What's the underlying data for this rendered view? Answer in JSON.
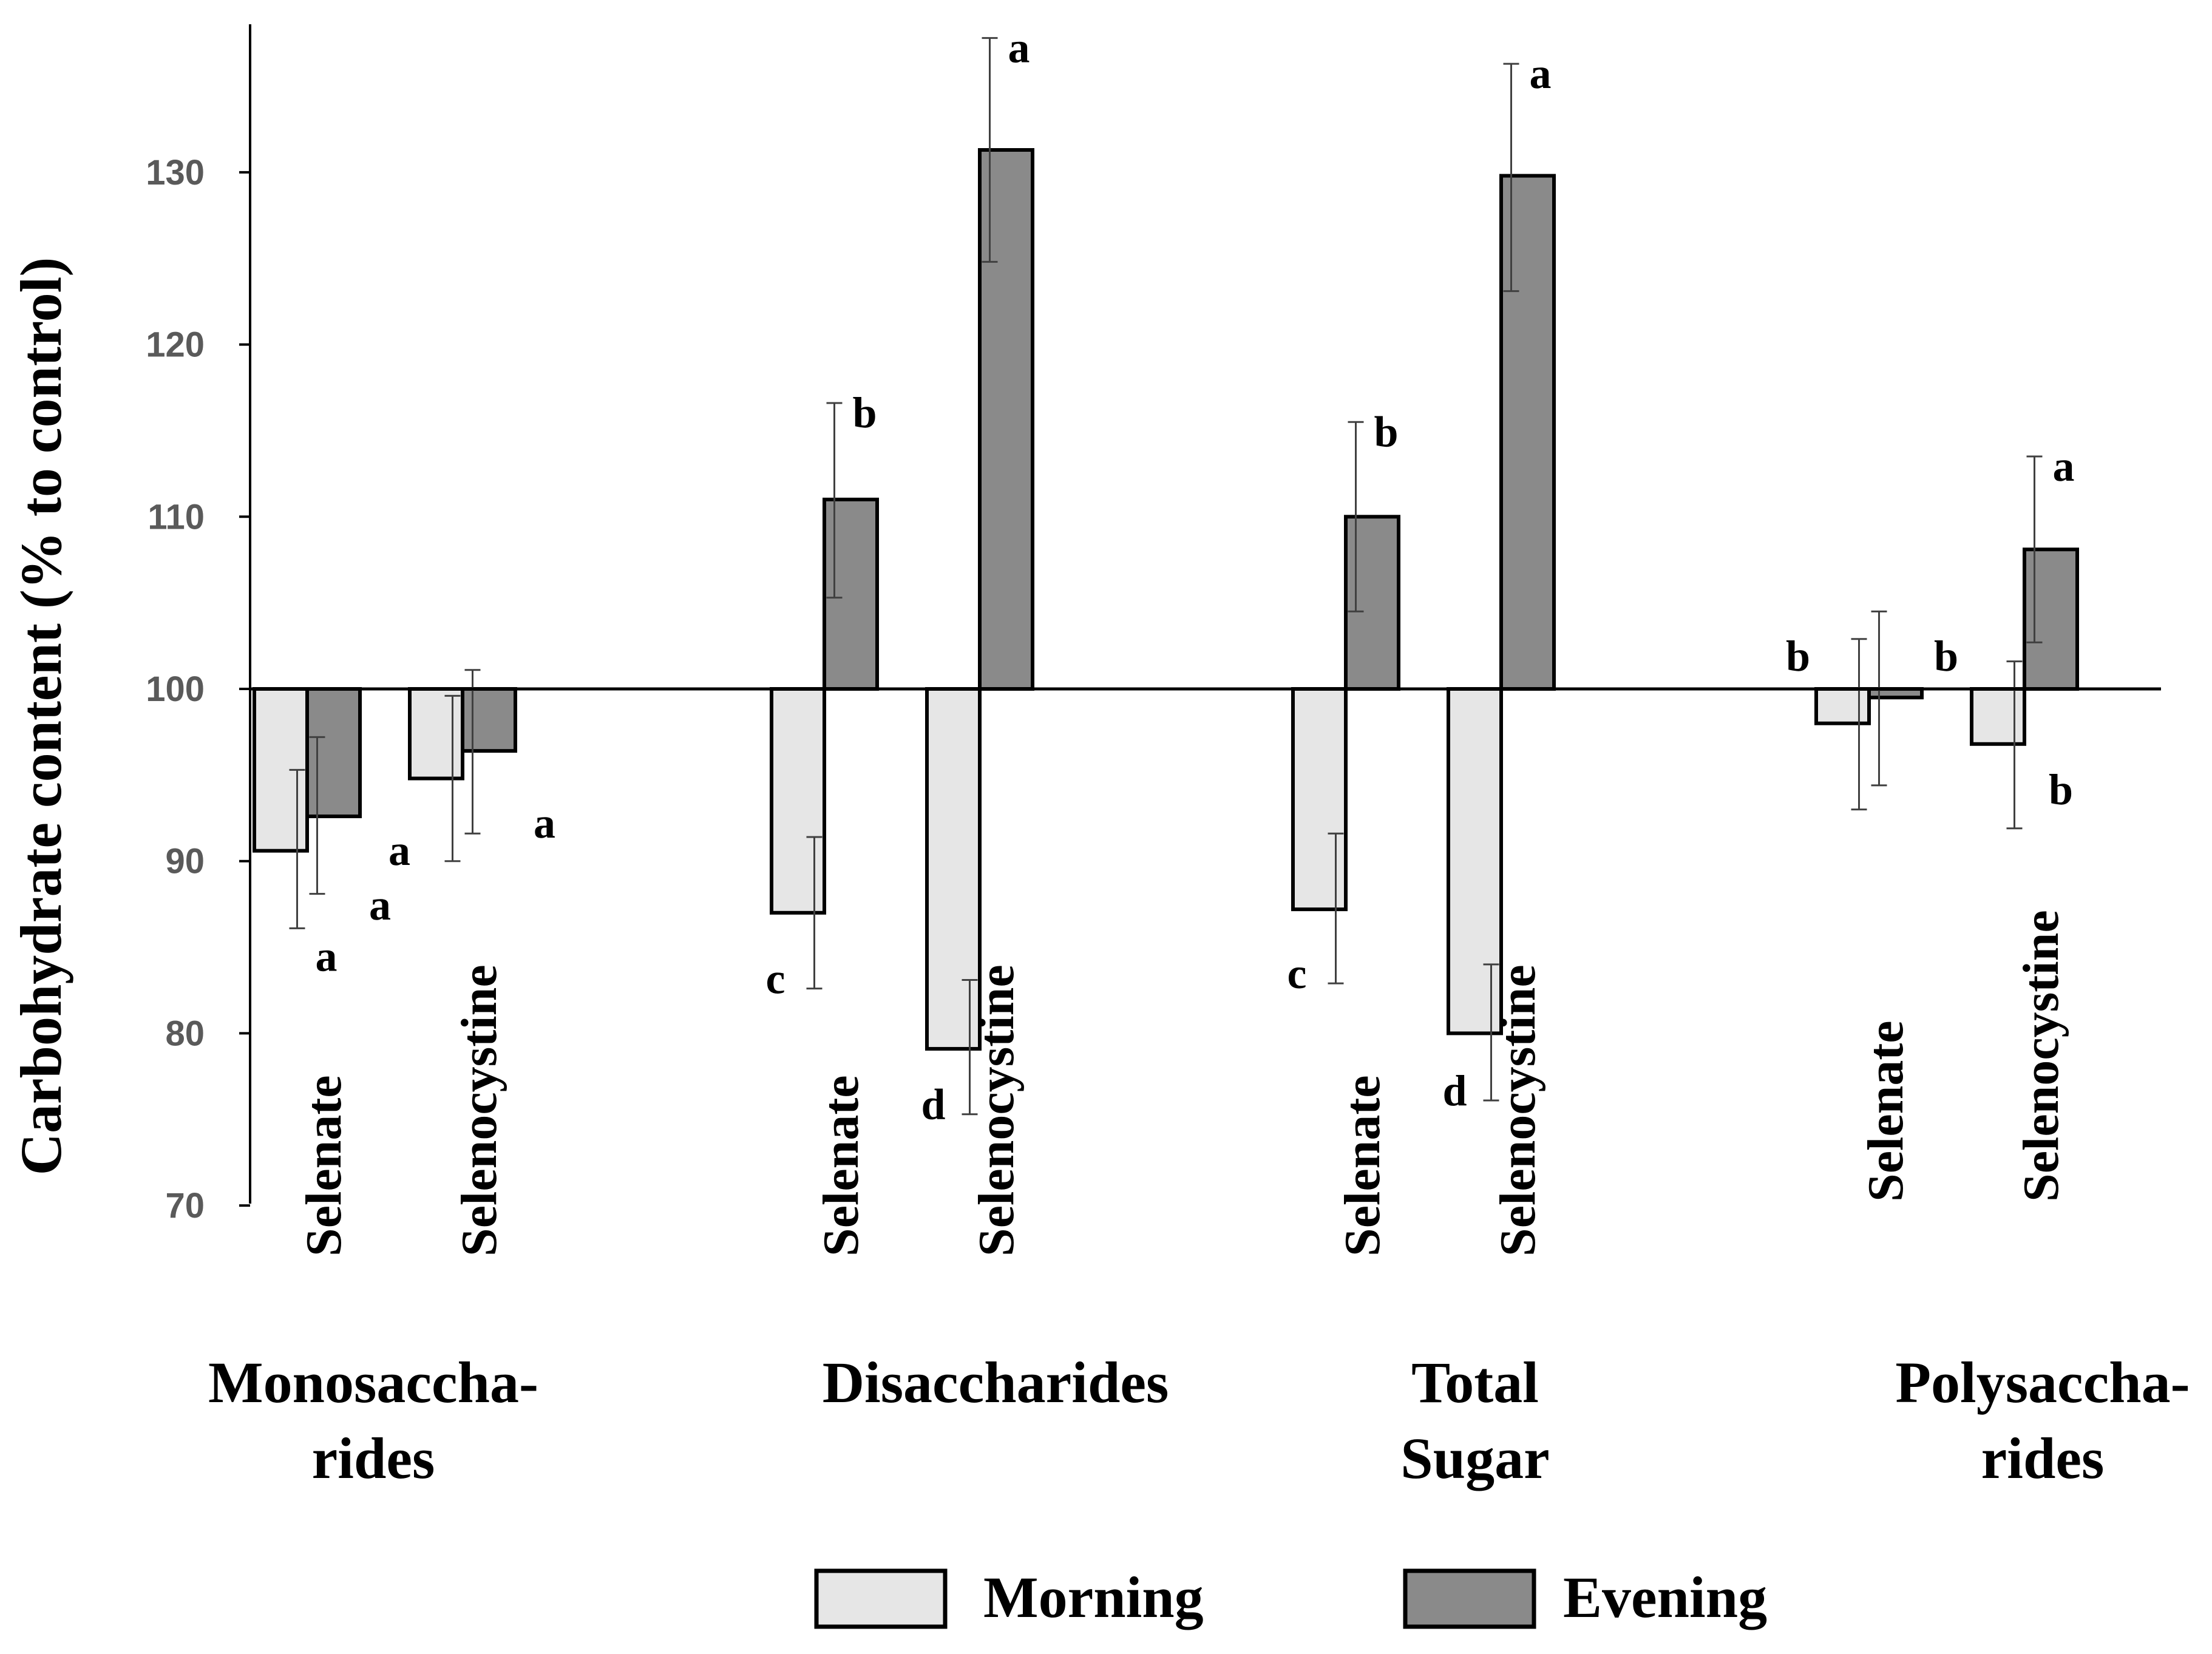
{
  "chart_data": {
    "type": "bar",
    "ylabel": "Carbohydrate content (% to control)",
    "ylim": [
      70,
      140
    ],
    "yticks": [
      70,
      80,
      90,
      100,
      110,
      120,
      130
    ],
    "baseline": 100,
    "groups": [
      {
        "label_lines": [
          "Monosaccha-",
          "rides"
        ],
        "treatments": [
          {
            "label": "Selenate",
            "morning": {
              "value": 90.6,
              "err_low": 86.1,
              "err_high": 95.3,
              "letter": "a"
            },
            "evening": {
              "value": 92.6,
              "err_low": 88.1,
              "err_high": 97.2,
              "letter": "a"
            }
          },
          {
            "label": "Selenocystine",
            "morning": {
              "value": 94.8,
              "err_low": 90.0,
              "err_high": 99.6,
              "letter": "a"
            },
            "evening": {
              "value": 96.4,
              "err_low": 91.6,
              "err_high": 101.1,
              "letter": "a"
            }
          }
        ]
      },
      {
        "label_lines": [
          "Disaccharides"
        ],
        "treatments": [
          {
            "label": "Selenate",
            "morning": {
              "value": 87.0,
              "err_low": 82.6,
              "err_high": 91.4,
              "letter": "c"
            },
            "evening": {
              "value": 111.0,
              "err_low": 105.3,
              "err_high": 116.6,
              "letter": "b"
            }
          },
          {
            "label": "Selenocystine",
            "morning": {
              "value": 79.1,
              "err_low": 75.3,
              "err_high": 83.1,
              "letter": "d"
            },
            "evening": {
              "value": 131.3,
              "err_low": 124.8,
              "err_high": 137.8,
              "letter": "a"
            }
          }
        ]
      },
      {
        "label_lines": [
          "Total",
          "Sugar"
        ],
        "treatments": [
          {
            "label": "Selenate",
            "morning": {
              "value": 87.2,
              "err_low": 82.9,
              "err_high": 91.6,
              "letter": "c"
            },
            "evening": {
              "value": 110.0,
              "err_low": 104.5,
              "err_high": 115.5,
              "letter": "b"
            }
          },
          {
            "label": "Selenocystine",
            "morning": {
              "value": 80.0,
              "err_low": 76.1,
              "err_high": 84.0,
              "letter": "d"
            },
            "evening": {
              "value": 129.8,
              "err_low": 123.1,
              "err_high": 136.3,
              "letter": "a"
            }
          }
        ]
      },
      {
        "label_lines": [
          "Polysaccha-",
          "rides"
        ],
        "treatments": [
          {
            "label": "Selenate",
            "morning": {
              "value": 98.0,
              "err_low": 93.0,
              "err_high": 102.9,
              "letter": "b"
            },
            "evening": {
              "value": 99.5,
              "err_low": 94.4,
              "err_high": 104.5,
              "letter": "b"
            }
          },
          {
            "label": "Selenocystine",
            "morning": {
              "value": 96.8,
              "err_low": 91.9,
              "err_high": 101.6,
              "letter": "b"
            },
            "evening": {
              "value": 108.1,
              "err_low": 102.7,
              "err_high": 113.5,
              "letter": "a"
            }
          }
        ]
      }
    ],
    "legend": {
      "placement": "bottom-center",
      "items": [
        {
          "series": "morning",
          "label": "Morning",
          "color": "#e6e6e6"
        },
        {
          "series": "evening",
          "label": "Evening",
          "color": "#8a8a8a"
        }
      ]
    },
    "colors": {
      "morning": "#e6e6e6",
      "evening": "#8a8a8a",
      "axis": "#000000",
      "error_bar": "#404040"
    }
  }
}
